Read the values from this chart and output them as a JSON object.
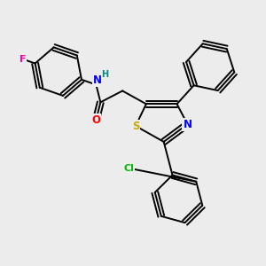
{
  "bg_color": "#ececec",
  "bond_color": "#000000",
  "bond_width": 1.4,
  "atom_colors": {
    "N": "#0000ff",
    "O": "#ff0000",
    "S": "#ccaa00",
    "F": "#ff00aa",
    "Cl": "#00bb00",
    "H": "#008888",
    "C": "#000000"
  },
  "font_size": 8.5
}
